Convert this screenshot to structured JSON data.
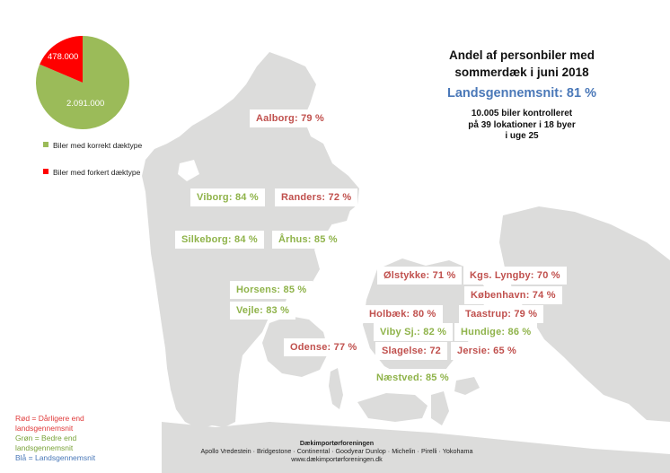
{
  "title_lines": [
    "Andel af personbiler med",
    "sommerdæk i juni 2018"
  ],
  "national_average": "Landsgennemsnit: 81 %",
  "info_lines": [
    "10.005 biler kontrolleret",
    "på 39 lokationer i 18 byer",
    "i uge 25"
  ],
  "pie": {
    "slices": [
      {
        "label": "2.091.000",
        "value": 2091000,
        "color": "#9bbb59"
      },
      {
        "label": "478.000",
        "value": 478000,
        "color": "#ff0000"
      }
    ]
  },
  "legend": [
    {
      "label": "Biler med korrekt dæktype",
      "color": "#9bbb59"
    },
    {
      "label": "Biler med forkert dæktype",
      "color": "#ff0000"
    }
  ],
  "cities": [
    {
      "name": "Aalborg: 79 %",
      "status": "red"
    },
    {
      "name": "Viborg: 84 %",
      "status": "green"
    },
    {
      "name": "Randers: 72 %",
      "status": "red"
    },
    {
      "name": "Silkeborg: 84 %",
      "status": "green"
    },
    {
      "name": "Århus: 85 %",
      "status": "green"
    },
    {
      "name": "Horsens: 85 %",
      "status": "green"
    },
    {
      "name": "Vejle: 83 %",
      "status": "green"
    },
    {
      "name": "Odense: 77 %",
      "status": "red"
    },
    {
      "name": "Ølstykke: 71 %",
      "status": "red"
    },
    {
      "name": "Kgs. Lyngby: 70 %",
      "status": "red"
    },
    {
      "name": "København: 74 %",
      "status": "red"
    },
    {
      "name": "Holbæk: 80 %",
      "status": "red"
    },
    {
      "name": "Taastrup: 79 %",
      "status": "red"
    },
    {
      "name": "Viby Sj.: 82 %",
      "status": "green"
    },
    {
      "name": "Hundige: 86 %",
      "status": "green"
    },
    {
      "name": "Slagelse: 72",
      "status": "red"
    },
    {
      "name": "Jersie: 65 %",
      "status": "red"
    },
    {
      "name": "Næstved: 85 %",
      "status": "green"
    }
  ],
  "color_note": [
    {
      "text": "Rød = Dårligere end landsgennemsnit",
      "color": "red"
    },
    {
      "text": "Grøn = Bedre end landsgennemsnit",
      "color": "green"
    },
    {
      "text": "Blå = Landsgennemsnit",
      "color": "blue"
    }
  ],
  "footer": {
    "org": "Dækimportørforeningen",
    "brands": "Apollo Vredestein · Bridgestone · Continental · Goodyear Dunlop · Michelin · Pirelli · Yokohama",
    "url": "www.dækimportørforeningen.dk"
  },
  "colors": {
    "red": "#c0504d",
    "green": "#8fb34a",
    "blue": "#4a78b8",
    "land": "#dcdcdb"
  }
}
